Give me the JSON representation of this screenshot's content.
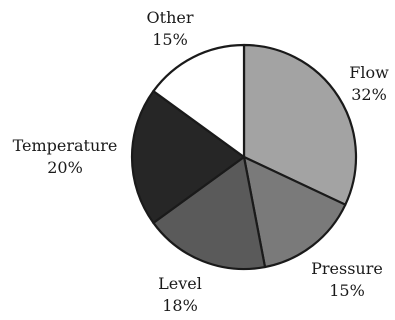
{
  "chart_data": {
    "type": "pie",
    "slices": [
      {
        "label": "Flow",
        "percent_label": "32%",
        "value": 32,
        "color": "#a3a3a3"
      },
      {
        "label": "Pressure",
        "percent_label": "15%",
        "value": 15,
        "color": "#7a7a7a"
      },
      {
        "label": "Level",
        "percent_label": "18%",
        "value": 18,
        "color": "#5a5a5a"
      },
      {
        "label": "Temperature",
        "percent_label": "20%",
        "value": 20,
        "color": "#262626"
      },
      {
        "label": "Other",
        "percent_label": "15%",
        "value": 15,
        "color": "#ffffff"
      }
    ],
    "start": "12 o'clock",
    "direction": "clockwise"
  }
}
